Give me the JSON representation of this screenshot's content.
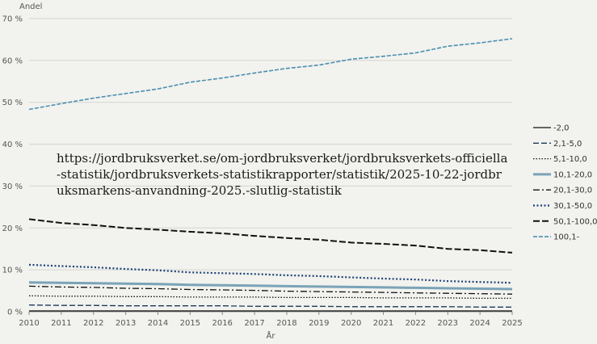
{
  "chart_data": {
    "type": "line",
    "ylabel": "Andel",
    "xlabel": "År",
    "x": [
      2010,
      2011,
      2012,
      2013,
      2014,
      2015,
      2016,
      2017,
      2018,
      2019,
      2020,
      2021,
      2022,
      2023,
      2024,
      2025
    ],
    "yticks": [
      "0 %",
      "10 %",
      "20 %",
      "30 %",
      "40 %",
      "50 %",
      "60 %",
      "70 %"
    ],
    "ylim": [
      0,
      70
    ],
    "grid": true,
    "legend_position": "right",
    "annotation": "https://jordbruksverket.se/om-jordbruksverket/jordbruksverkets-officiella-statistik/jordbruksverkets-statistikrapporter/statistik/2025-10-22-jordbruksmarkens-anvandning-2025.-slutlig-statistik",
    "series": [
      {
        "name": "-2,0",
        "color": "#111111",
        "dash": "solid",
        "width": 1.3,
        "values": [
          0.2,
          0.2,
          0.2,
          0.2,
          0.2,
          0.2,
          0.2,
          0.2,
          0.2,
          0.2,
          0.2,
          0.2,
          0.2,
          0.2,
          0.2,
          0.2
        ]
      },
      {
        "name": "2,1-5,0",
        "color": "#1d3a5a",
        "dash": "7,3",
        "width": 1.3,
        "values": [
          1.6,
          1.5,
          1.5,
          1.4,
          1.4,
          1.4,
          1.4,
          1.3,
          1.3,
          1.3,
          1.2,
          1.2,
          1.2,
          1.2,
          1.1,
          1.1
        ]
      },
      {
        "name": "5,1-10,0",
        "color": "#111111",
        "dash": "1.5,2",
        "width": 1.3,
        "values": [
          3.8,
          3.7,
          3.7,
          3.6,
          3.6,
          3.5,
          3.5,
          3.5,
          3.4,
          3.4,
          3.4,
          3.3,
          3.3,
          3.3,
          3.2,
          3.2
        ]
      },
      {
        "name": "10,1-20,0",
        "color": "#7aa3b8",
        "dash": "solid",
        "width": 3,
        "values": [
          7.0,
          6.9,
          6.8,
          6.7,
          6.6,
          6.4,
          6.3,
          6.2,
          6.1,
          6.0,
          5.9,
          5.8,
          5.7,
          5.6,
          5.5,
          5.4
        ]
      },
      {
        "name": "20,1-30,0",
        "color": "#111111",
        "dash": "8,3,2,3",
        "width": 1.3,
        "values": [
          6.1,
          5.9,
          5.8,
          5.6,
          5.5,
          5.3,
          5.2,
          5.1,
          4.9,
          4.8,
          4.7,
          4.6,
          4.5,
          4.4,
          4.3,
          4.2
        ]
      },
      {
        "name": "30,1-50,0",
        "color": "#1a3f78",
        "dash": "2,2.5",
        "width": 2.2,
        "values": [
          11.2,
          10.9,
          10.6,
          10.2,
          9.9,
          9.4,
          9.2,
          9.0,
          8.7,
          8.5,
          8.2,
          7.9,
          7.7,
          7.3,
          7.1,
          6.9
        ]
      },
      {
        "name": "50,1-100,0",
        "color": "#111111",
        "dash": "8,3",
        "width": 2,
        "values": [
          22.1,
          21.2,
          20.7,
          20.0,
          19.6,
          19.1,
          18.7,
          18.1,
          17.6,
          17.2,
          16.5,
          16.2,
          15.8,
          15.0,
          14.7,
          14.1
        ]
      },
      {
        "name": "100,1-",
        "color": "#4a8fb0",
        "dash": "5,2",
        "width": 1.6,
        "values": [
          48.3,
          49.7,
          51.0,
          52.1,
          53.2,
          54.8,
          55.8,
          57.0,
          58.1,
          58.9,
          60.3,
          61.0,
          61.8,
          63.4,
          64.2,
          65.2
        ]
      }
    ]
  }
}
